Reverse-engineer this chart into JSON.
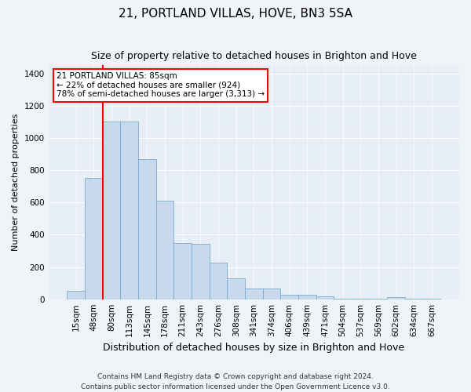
{
  "title": "21, PORTLAND VILLAS, HOVE, BN3 5SA",
  "subtitle": "Size of property relative to detached houses in Brighton and Hove",
  "xlabel": "Distribution of detached houses by size in Brighton and Hove",
  "ylabel": "Number of detached properties",
  "footer1": "Contains HM Land Registry data © Crown copyright and database right 2024.",
  "footer2": "Contains public sector information licensed under the Open Government Licence v3.0.",
  "bar_labels": [
    "15sqm",
    "48sqm",
    "80sqm",
    "113sqm",
    "145sqm",
    "178sqm",
    "211sqm",
    "243sqm",
    "276sqm",
    "308sqm",
    "341sqm",
    "374sqm",
    "406sqm",
    "439sqm",
    "471sqm",
    "504sqm",
    "537sqm",
    "569sqm",
    "602sqm",
    "634sqm",
    "667sqm"
  ],
  "bar_values": [
    50,
    750,
    1100,
    1100,
    870,
    610,
    350,
    345,
    225,
    130,
    65,
    65,
    28,
    28,
    20,
    5,
    5,
    5,
    13,
    5,
    5
  ],
  "bar_color": "#c9d9ed",
  "bar_edge_color": "#7aaace",
  "property_label": "21 PORTLAND VILLAS: 85sqm",
  "annotation_line1": "← 22% of detached houses are smaller (924)",
  "annotation_line2": "78% of semi-detached houses are larger (3,313) →",
  "vline_x_index": 2.0,
  "ylim": [
    0,
    1450
  ],
  "yticks": [
    0,
    200,
    400,
    600,
    800,
    1000,
    1200,
    1400
  ],
  "box_color": "red",
  "vline_color": "red",
  "background_color": "#f0f4f9",
  "plot_bg_color": "#e8eef6",
  "grid_color": "#ffffff",
  "title_fontsize": 11,
  "subtitle_fontsize": 9,
  "ylabel_fontsize": 8,
  "xlabel_fontsize": 9,
  "tick_fontsize": 7.5,
  "annotation_fontsize": 7.5,
  "footer_fontsize": 6.5
}
